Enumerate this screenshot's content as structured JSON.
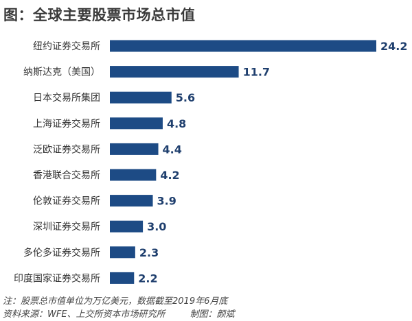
{
  "chart_data": {
    "type": "bar",
    "orientation": "horizontal",
    "title": "图：全球主要股票市场总市值",
    "categories": [
      "纽约证券交易所",
      "纳斯达克（美国）",
      "日本交易所集团",
      "上海证券交易所",
      "泛欧证券交易所",
      "香港联合交易所",
      "伦敦证券交易所",
      "深圳证券交易所",
      "多伦多证券交易所",
      "印度国家证券交易所"
    ],
    "values": [
      24.2,
      11.7,
      5.6,
      4.8,
      4.4,
      4.2,
      3.9,
      3.0,
      2.3,
      2.2
    ],
    "value_labels": [
      "24.2",
      "11.7",
      "5.6",
      "4.8",
      "4.4",
      "4.2",
      "3.9",
      "3.0",
      "2.3",
      "2.2"
    ],
    "xlim": [
      0,
      24.2
    ],
    "bar_color": "#1d4b85",
    "grid": false,
    "xlabel": "",
    "ylabel": ""
  },
  "notes": {
    "note": "注：股票总市值单位为万亿美元，数据截至2019年6月底",
    "source": "资料来源：WFE、上交所资本市场研究所",
    "author": "制图：颜斌"
  }
}
